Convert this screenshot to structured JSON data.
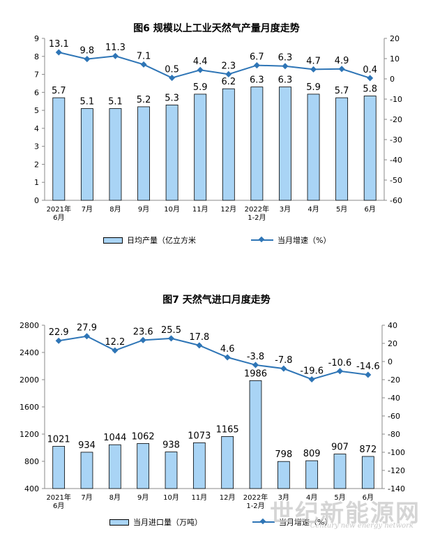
{
  "chart_data": [
    {
      "type": "bar",
      "title": "图6  规模以上工业天然气产量月度走势",
      "categories": [
        [
          "2021年",
          "6月"
        ],
        [
          "7月"
        ],
        [
          "8月"
        ],
        [
          "9月"
        ],
        [
          "10月"
        ],
        [
          "11月"
        ],
        [
          "12月"
        ],
        [
          "2022年",
          "1-2月"
        ],
        [
          "3月"
        ],
        [
          "4月"
        ],
        [
          "5月"
        ],
        [
          "6月"
        ]
      ],
      "series": [
        {
          "name": "日均产量（亿立方米",
          "type": "bar",
          "axis": "left",
          "values": [
            5.7,
            5.1,
            5.1,
            5.2,
            5.3,
            5.9,
            6.2,
            6.3,
            6.3,
            5.9,
            5.7,
            5.8
          ],
          "labels": [
            "5.7",
            "5.1",
            "5.1",
            "5.2",
            "5.3",
            "5.9",
            "6.2",
            "6.3",
            "6.3",
            "5.9",
            "5.7",
            "5.8"
          ]
        },
        {
          "name": "当月增速（%）",
          "type": "line",
          "axis": "right",
          "values": [
            13.1,
            9.8,
            11.3,
            7.1,
            0.5,
            4.4,
            2.3,
            6.7,
            6.3,
            4.7,
            4.9,
            0.4
          ],
          "labels": [
            "13.1",
            "9.8",
            "11.3",
            "7.1",
            "0.5",
            "4.4",
            "2.3",
            "6.7",
            "6.3",
            "4.7",
            "4.9",
            "0.4"
          ]
        }
      ],
      "y_left": {
        "min": 0,
        "max": 9,
        "ticks": [
          "0",
          "1",
          "2",
          "3",
          "4",
          "5",
          "6",
          "7",
          "8",
          "9"
        ]
      },
      "y_right": {
        "min": -60,
        "max": 20,
        "ticks": [
          "20",
          "10",
          "0",
          "-10",
          "-20",
          "-30",
          "-40",
          "-50",
          "-60"
        ]
      },
      "legend": [
        "日均产量（亿立方米",
        "当月增速（%）"
      ],
      "legend_position": "bottom",
      "grid": false
    },
    {
      "type": "bar",
      "title": "图7  天然气进口月度走势",
      "categories": [
        [
          "2021年",
          "6月"
        ],
        [
          "7月"
        ],
        [
          "8月"
        ],
        [
          "9月"
        ],
        [
          "10月"
        ],
        [
          "11月"
        ],
        [
          "12月"
        ],
        [
          "2022年",
          "1-2月"
        ],
        [
          "3月"
        ],
        [
          "4月"
        ],
        [
          "5月"
        ],
        [
          "6月"
        ]
      ],
      "series": [
        {
          "name": "当月进口量（万吨）",
          "type": "bar",
          "axis": "left",
          "values": [
            1021,
            934,
            1044,
            1062,
            938,
            1073,
            1165,
            1986,
            798,
            809,
            907,
            872
          ],
          "labels": [
            "1021",
            "934",
            "1044",
            "1062",
            "938",
            "1073",
            "1165",
            "1986",
            "798",
            "809",
            "907",
            "872"
          ]
        },
        {
          "name": "当月增速（%）",
          "type": "line",
          "axis": "right",
          "values": [
            22.9,
            27.9,
            12.2,
            23.6,
            25.5,
            17.8,
            4.6,
            -3.8,
            -7.8,
            -19.6,
            -10.6,
            -14.6
          ],
          "labels": [
            "22.9",
            "27.9",
            "12.2",
            "23.6",
            "25.5",
            "17.8",
            "4.6",
            "-3.8",
            "-7.8",
            "-19.6",
            "-10.6",
            "-14.6"
          ]
        }
      ],
      "y_left": {
        "min": 400,
        "max": 2800,
        "ticks": [
          "400",
          "800",
          "1200",
          "1600",
          "2000",
          "2400",
          "2800"
        ]
      },
      "y_right": {
        "min": -140,
        "max": 40,
        "ticks": [
          "40",
          "20",
          "0",
          "-20",
          "-40",
          "-60",
          "-80",
          "-100",
          "-120",
          "-140"
        ]
      },
      "legend": [
        "当月进口量（万吨）",
        "当月增速（%）"
      ],
      "legend_position": "bottom",
      "grid": false
    }
  ],
  "colors": {
    "bar_fill": "#a9d4f5",
    "bar_stroke": "#000000",
    "line": "#2e75b6"
  },
  "watermark": {
    "text": "世纪新能源网",
    "sub": "Century new energy network"
  }
}
